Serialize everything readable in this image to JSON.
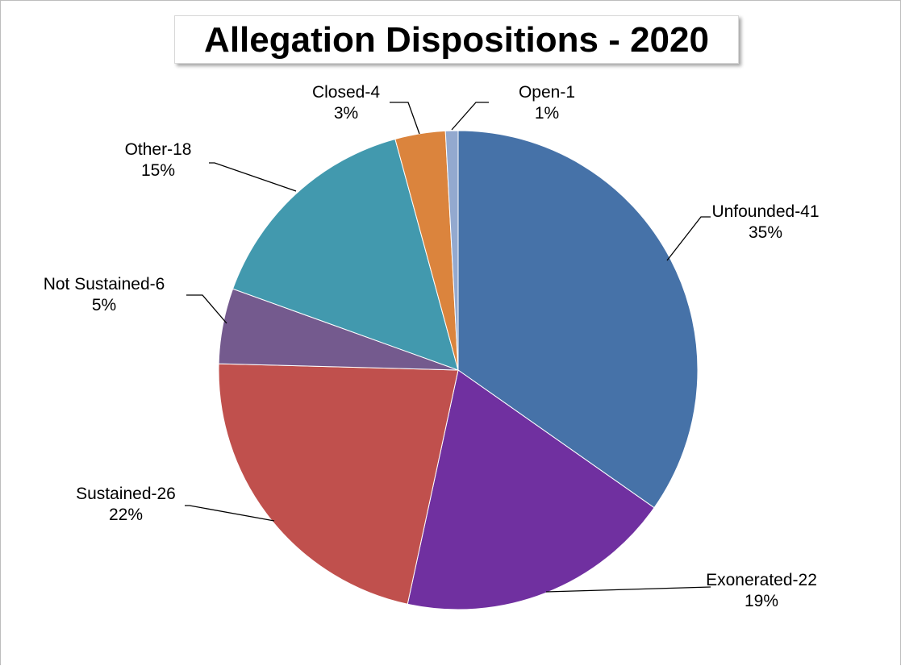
{
  "chart_data": {
    "type": "pie",
    "title": "Allegation Dispositions - 2020",
    "slices": [
      {
        "label": "Unfounded-41",
        "value": 41,
        "percent": "35%",
        "color": "#4672A8"
      },
      {
        "label": "Exonerated-22",
        "value": 22,
        "percent": "19%",
        "color": "#7030A0"
      },
      {
        "label": "Sustained-26",
        "value": 26,
        "percent": "22%",
        "color": "#C0504D"
      },
      {
        "label": "Not Sustained-6",
        "value": 6,
        "percent": "5%",
        "color": "#745A8E"
      },
      {
        "label": "Other-18",
        "value": 18,
        "percent": "15%",
        "color": "#4299AE"
      },
      {
        "label": "Closed-4",
        "value": 4,
        "percent": "3%",
        "color": "#DB843D"
      },
      {
        "label": "Open-1",
        "value": 1,
        "percent": "1%",
        "color": "#93A9CF"
      }
    ]
  }
}
